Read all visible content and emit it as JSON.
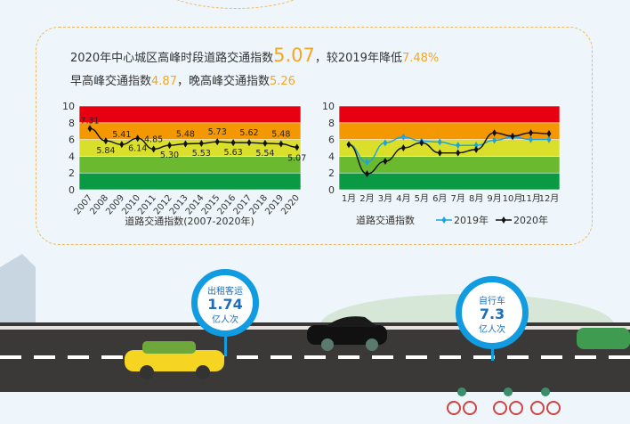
{
  "summary": {
    "line1_prefix": "2020年中心城区高峰时段道路交通指数",
    "index_2020": "5.07",
    "line1_mid": "，较2019年降低",
    "decrease": "7.48%",
    "line2_a": "早高峰交通指数",
    "morning": "4.87",
    "line2_b": "，晚高峰交通指数",
    "evening": "5.26"
  },
  "colors": {
    "band_0_2": "#0a9a44",
    "band_2_4": "#6ab92e",
    "band_4_6": "#d9df2a",
    "band_6_8": "#f39800",
    "band_8_10": "#e60012",
    "s2019": "#1aa3e0",
    "s2020": "#111111",
    "highlight": "#f5a623"
  },
  "chart_data": [
    {
      "type": "line",
      "title": "道路交通指数(2007-2020年)",
      "ylim": [
        0,
        10
      ],
      "yticks": [
        "0",
        "2",
        "4",
        "6",
        "8",
        "10"
      ],
      "categories": [
        "2007",
        "2008",
        "2009",
        "2010",
        "2011",
        "2012",
        "2013",
        "2014",
        "2015",
        "2016",
        "2017",
        "2018",
        "2019",
        "2020"
      ],
      "values": [
        7.31,
        5.84,
        5.41,
        6.14,
        4.85,
        5.3,
        5.48,
        5.53,
        5.73,
        5.63,
        5.62,
        5.54,
        5.48,
        5.07
      ],
      "labels": [
        "7.31",
        "5.84",
        "5.41",
        "6.14",
        "4.85",
        "5.30",
        "5.48",
        "5.53",
        "5.73",
        "5.63",
        "5.62",
        "5.54",
        "5.48",
        "5.07"
      ]
    },
    {
      "type": "line",
      "legend_title": "道路交通指数",
      "ylim": [
        0,
        10
      ],
      "yticks": [
        "0",
        "2",
        "4",
        "6",
        "8",
        "10"
      ],
      "categories": [
        "1月",
        "2月",
        "3月",
        "4月",
        "5月",
        "6月",
        "7月",
        "8月",
        "9月",
        "10月",
        "11月",
        "12月"
      ],
      "series": [
        {
          "name": "2019年",
          "values": [
            5.4,
            3.3,
            5.6,
            6.3,
            5.8,
            5.7,
            5.3,
            5.3,
            5.9,
            6.3,
            6.0,
            6.0
          ]
        },
        {
          "name": "2020年",
          "values": [
            5.4,
            1.9,
            3.4,
            5.0,
            5.6,
            4.4,
            4.4,
            4.8,
            6.8,
            6.4,
            6.8,
            6.7
          ]
        }
      ]
    }
  ],
  "taxi": {
    "title": "出租客运",
    "value": "1.74",
    "unit": "亿人次"
  },
  "bike": {
    "title": "自行车",
    "value": "7.3",
    "unit": "亿人次"
  }
}
